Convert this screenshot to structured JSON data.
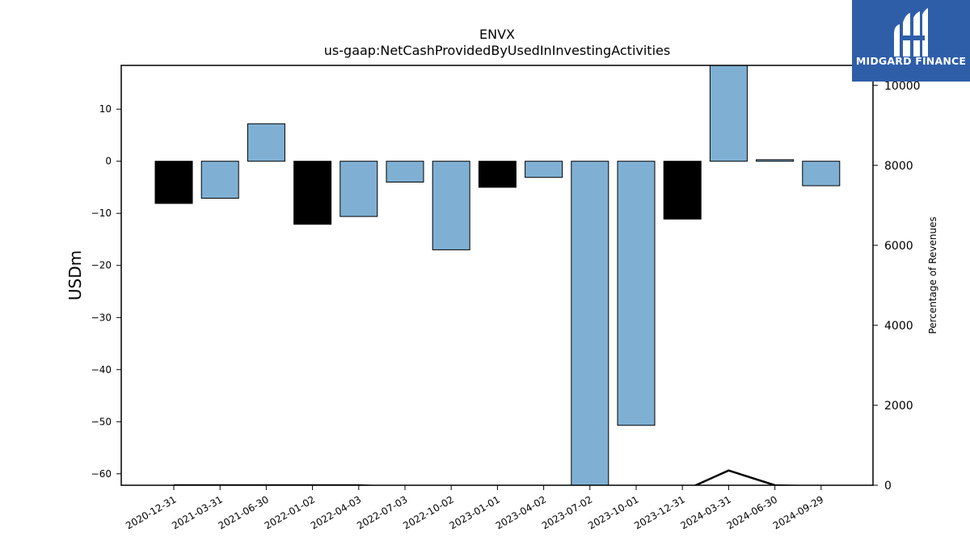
{
  "chart_data": {
    "type": "bar",
    "title": "ENVX",
    "subtitle": "us-gaap:NetCashProvidedByUsedInInvestingActivities",
    "ylabel": "USDm",
    "y2label": "Percentage of Revenues",
    "categories": [
      "2020-12-31",
      "2021-03-31",
      "2021-06-30",
      "2022-01-02",
      "2022-04-03",
      "2022-07-03",
      "2022-10-02",
      "2023-01-01",
      "2023-04-02",
      "2023-07-02",
      "2023-10-01",
      "2023-12-31",
      "2024-03-31",
      "2024-06-30",
      "2024-09-29"
    ],
    "values": [
      -8.1,
      -7.1,
      7.2,
      -12.1,
      -10.6,
      -4.0,
      -17.0,
      -5.0,
      -3.1,
      -65.0,
      -50.7,
      -11.1,
      18.8,
      0.3,
      -4.7
    ],
    "bar_colors": [
      "#000000",
      "#7fb0d4",
      "#7fb0d4",
      "#000000",
      "#7fb0d4",
      "#7fb0d4",
      "#7fb0d4",
      "#000000",
      "#7fb0d4",
      "#7fb0d4",
      "#7fb0d4",
      "#000000",
      "#7fb0d4",
      "#7fb0d4",
      "#7fb0d4"
    ],
    "ylim": [
      -62.2,
      18.4
    ],
    "yticks": [
      10,
      0,
      -10,
      -20,
      -30,
      -40,
      -50,
      -60
    ],
    "ytick_labels": [
      "10",
      "0",
      "−10",
      "−20",
      "−30",
      "−40",
      "−50",
      "−60"
    ],
    "y2lim": [
      0,
      10500
    ],
    "y2ticks": [
      0,
      2000,
      4000,
      6000,
      8000,
      10000
    ],
    "y2tick_labels": [
      "0",
      "2000",
      "4000",
      "6000",
      "8000",
      "10000"
    ],
    "line_series": {
      "values": [
        0,
        0,
        0,
        0,
        0,
        -50,
        -100,
        -200,
        -400,
        -800,
        -1000,
        -150,
        370,
        0,
        -30
      ]
    },
    "colors": {
      "positive": "#7fb0d4",
      "negative_highlight": "#000000",
      "line": "#000000"
    }
  },
  "logo": {
    "text": "MIDGARD FINANCE",
    "background": "#2f5ea8"
  }
}
